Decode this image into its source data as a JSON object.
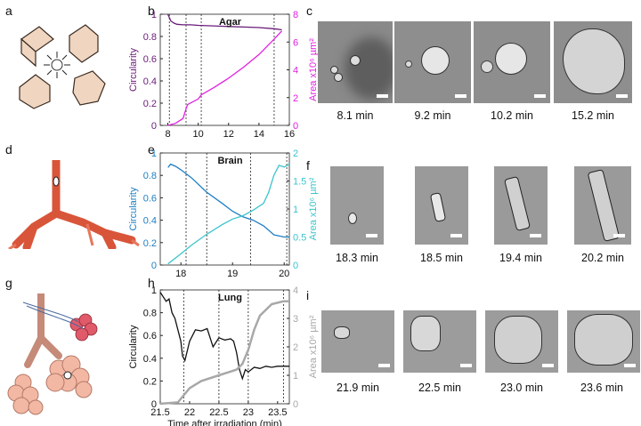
{
  "panels": {
    "a": "a",
    "b": "b",
    "c": "c",
    "d": "d",
    "e": "e",
    "f": "f",
    "g": "g",
    "h": "h",
    "i": "i"
  },
  "colors": {
    "agar_circ": "#6a1b7a",
    "agar_area": "#e020e0",
    "brain_circ": "#1e7fc4",
    "brain_area": "#3cc4cc",
    "lung_circ": "#111111",
    "lung_area": "#a8a8a8"
  },
  "chart_data": [
    {
      "type": "line",
      "panel": "b",
      "title": "Agar",
      "ylabel": "Circularity",
      "y2label": "Area x10⁶ µm²",
      "xlim": [
        7.5,
        16
      ],
      "ylim": [
        0,
        1
      ],
      "y2lim": [
        0,
        8
      ],
      "xticks": [
        "8",
        "10",
        "12",
        "14",
        "16"
      ],
      "xtick_values": [
        8,
        10,
        12,
        14,
        16
      ],
      "yticks": [
        "0",
        "0.2",
        "0.4",
        "0.6",
        "0.8",
        "1"
      ],
      "y2ticks": [
        "0",
        "2",
        "4",
        "6",
        "8"
      ],
      "vlines": [
        8.1,
        9.2,
        10.2,
        15.0
      ],
      "series": [
        {
          "axis": "left",
          "x": [
            8.0,
            8.2,
            8.4,
            8.6,
            9.0,
            9.5,
            10,
            11,
            12,
            13,
            14,
            15,
            15.5
          ],
          "values": [
            1.0,
            0.94,
            0.92,
            0.91,
            0.905,
            0.905,
            0.9,
            0.895,
            0.89,
            0.885,
            0.88,
            0.87,
            0.86
          ]
        },
        {
          "axis": "right",
          "x": [
            8.0,
            8.5,
            9.0,
            9.2,
            9.3,
            10,
            10.2,
            11,
            12,
            13,
            14,
            15,
            15.5
          ],
          "values": [
            0.0,
            0.15,
            0.5,
            1.2,
            1.5,
            1.9,
            2.2,
            2.7,
            3.4,
            4.2,
            5.1,
            6.2,
            6.8
          ]
        }
      ]
    },
    {
      "type": "line",
      "panel": "e",
      "title": "Brain",
      "ylabel": "Circularity",
      "y2label": "Area x10⁶ µm²",
      "xlim": [
        17.6,
        20.1
      ],
      "ylim": [
        0,
        1
      ],
      "y2lim": [
        0,
        2
      ],
      "xticks": [
        "18",
        "19",
        "20"
      ],
      "xtick_values": [
        18,
        19,
        20
      ],
      "yticks": [
        "0",
        "0.2",
        "0.4",
        "0.6",
        "0.8",
        "1"
      ],
      "y2ticks": [
        "0",
        "0.5",
        "1",
        "1.5",
        "2"
      ],
      "vlines": [
        18.1,
        18.5,
        19.35,
        20.05
      ],
      "series": [
        {
          "axis": "left",
          "x": [
            17.75,
            17.8,
            17.9,
            18.0,
            18.2,
            18.5,
            18.8,
            19.0,
            19.2,
            19.4,
            19.6,
            19.7,
            19.8,
            20.0,
            20.1
          ],
          "values": [
            0.87,
            0.9,
            0.88,
            0.85,
            0.78,
            0.65,
            0.55,
            0.48,
            0.43,
            0.4,
            0.35,
            0.31,
            0.27,
            0.25,
            0.25
          ]
        },
        {
          "axis": "right",
          "x": [
            17.75,
            18.0,
            18.2,
            18.5,
            18.8,
            19.0,
            19.2,
            19.4,
            19.6,
            19.7,
            19.8,
            19.9,
            20.0,
            20.1
          ],
          "values": [
            0.02,
            0.2,
            0.35,
            0.55,
            0.72,
            0.82,
            0.88,
            0.98,
            1.1,
            1.3,
            1.6,
            1.78,
            1.75,
            1.8
          ]
        }
      ]
    },
    {
      "type": "line",
      "panel": "h",
      "title": "Lung",
      "xlabel": "Time after irradiation (min)",
      "ylabel": "Circularity",
      "y2label": "Area x10⁶ µm²",
      "xlim": [
        21.5,
        23.7
      ],
      "ylim": [
        0,
        1
      ],
      "y2lim": [
        0,
        4
      ],
      "xticks": [
        "21.5",
        "22",
        "22.5",
        "23",
        "23.5"
      ],
      "xtick_values": [
        21.5,
        22,
        22.5,
        23,
        23.5
      ],
      "yticks": [
        "0",
        "0.2",
        "0.4",
        "0.6",
        "0.8",
        "1"
      ],
      "y2ticks": [
        "0",
        "1",
        "2",
        "3",
        "4"
      ],
      "vlines": [
        21.9,
        22.5,
        23.0,
        23.6
      ],
      "series": [
        {
          "axis": "left",
          "x": [
            21.5,
            21.6,
            21.65,
            21.7,
            21.75,
            21.8,
            21.85,
            21.88,
            21.92,
            22.0,
            22.1,
            22.2,
            22.3,
            22.4,
            22.5,
            22.6,
            22.7,
            22.75,
            22.8,
            22.85,
            22.9,
            22.95,
            23.0,
            23.1,
            23.2,
            23.3,
            23.4,
            23.5,
            23.6,
            23.7
          ],
          "values": [
            0.98,
            0.9,
            0.92,
            0.8,
            0.75,
            0.65,
            0.55,
            0.42,
            0.38,
            0.55,
            0.65,
            0.64,
            0.66,
            0.5,
            0.58,
            0.56,
            0.57,
            0.55,
            0.45,
            0.3,
            0.22,
            0.3,
            0.28,
            0.32,
            0.31,
            0.33,
            0.32,
            0.33,
            0.33,
            0.33
          ]
        },
        {
          "axis": "right",
          "x": [
            21.5,
            21.8,
            21.9,
            22.0,
            22.2,
            22.5,
            22.8,
            22.9,
            23.0,
            23.1,
            23.2,
            23.4,
            23.6,
            23.7
          ],
          "values": [
            0.0,
            0.05,
            0.3,
            0.55,
            0.8,
            1.0,
            1.2,
            1.4,
            1.9,
            2.6,
            3.1,
            3.5,
            3.6,
            3.6
          ]
        }
      ]
    }
  ],
  "micrographs": {
    "c": [
      {
        "caption": "8.1 min"
      },
      {
        "caption": "9.2 min"
      },
      {
        "caption": "10.2 min"
      },
      {
        "caption": "15.2 min"
      }
    ],
    "f": [
      {
        "caption": "18.3 min"
      },
      {
        "caption": "18.5 min"
      },
      {
        "caption": "19.4 min"
      },
      {
        "caption": "20.2 min"
      }
    ],
    "i": [
      {
        "caption": "21.9 min"
      },
      {
        "caption": "22.5 min"
      },
      {
        "caption": "23.0 min"
      },
      {
        "caption": "23.6 min"
      }
    ]
  }
}
